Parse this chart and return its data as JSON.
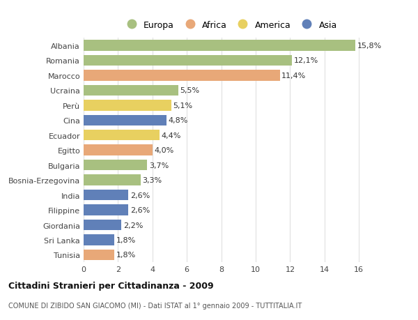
{
  "countries": [
    "Albania",
    "Romania",
    "Marocco",
    "Ucraina",
    "Perù",
    "Cina",
    "Ecuador",
    "Egitto",
    "Bulgaria",
    "Bosnia-Erzegovina",
    "India",
    "Filippine",
    "Giordania",
    "Sri Lanka",
    "Tunisia"
  ],
  "values": [
    15.8,
    12.1,
    11.4,
    5.5,
    5.1,
    4.8,
    4.4,
    4.0,
    3.7,
    3.3,
    2.6,
    2.6,
    2.2,
    1.8,
    1.8
  ],
  "labels": [
    "15,8%",
    "12,1%",
    "11,4%",
    "5,5%",
    "5,1%",
    "4,8%",
    "4,4%",
    "4,0%",
    "3,7%",
    "3,3%",
    "2,6%",
    "2,6%",
    "2,2%",
    "1,8%",
    "1,8%"
  ],
  "categories": [
    "Europa",
    "Africa",
    "America",
    "Asia"
  ],
  "bar_colors": [
    "#a8c080",
    "#a8c080",
    "#e8a878",
    "#a8c080",
    "#e8d060",
    "#6080b8",
    "#e8d060",
    "#e8a878",
    "#a8c080",
    "#a8c080",
    "#6080b8",
    "#6080b8",
    "#6080b8",
    "#6080b8",
    "#e8a878"
  ],
  "legend_colors": [
    "#a8c080",
    "#e8a878",
    "#e8d060",
    "#6080b8"
  ],
  "xlim": [
    0,
    17
  ],
  "xticks": [
    0,
    2,
    4,
    6,
    8,
    10,
    12,
    14,
    16
  ],
  "title": "Cittadini Stranieri per Cittadinanza - 2009",
  "subtitle": "COMUNE DI ZIBIDO SAN GIACOMO (MI) - Dati ISTAT al 1° gennaio 2009 - TUTTITALIA.IT",
  "bg_color": "#ffffff",
  "grid_color": "#e0e0e0"
}
